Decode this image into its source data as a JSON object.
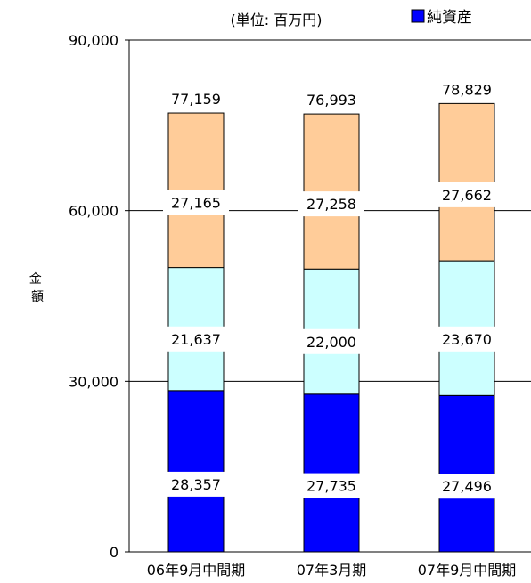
{
  "chart_data": {
    "type": "bar",
    "stacked": true,
    "unit_label": "(単位: 百万円)",
    "ylabel": "金額",
    "ylim": [
      0,
      90000
    ],
    "yticks": [
      "0",
      "30,000",
      "60,000",
      "90,000"
    ],
    "ytick_values": [
      0,
      30000,
      60000,
      90000
    ],
    "categories": [
      "06年9月中間期",
      "07年3月期",
      "07年9月中間期"
    ],
    "series": [
      {
        "name": "純資産",
        "values": [
          28357,
          27735,
          27496
        ],
        "color": "#0000ff"
      },
      {
        "values": [
          21637,
          22000,
          23670
        ],
        "color": "#ccffff"
      },
      {
        "values": [
          27165,
          27258,
          27662
        ],
        "color": "#ffcc99"
      }
    ],
    "segment_labels": [
      [
        "28,357",
        "21,637",
        "27,165"
      ],
      [
        "27,735",
        "22,000",
        "27,258"
      ],
      [
        "27,496",
        "23,670",
        "27,662"
      ]
    ],
    "totals": [
      77159,
      76993,
      78829
    ],
    "total_labels": [
      "77,159",
      "76,993",
      "78,829"
    ],
    "legend": [
      {
        "label": "純資産",
        "color": "#0000ff"
      }
    ],
    "grid": true,
    "legend_position": "top-right"
  }
}
